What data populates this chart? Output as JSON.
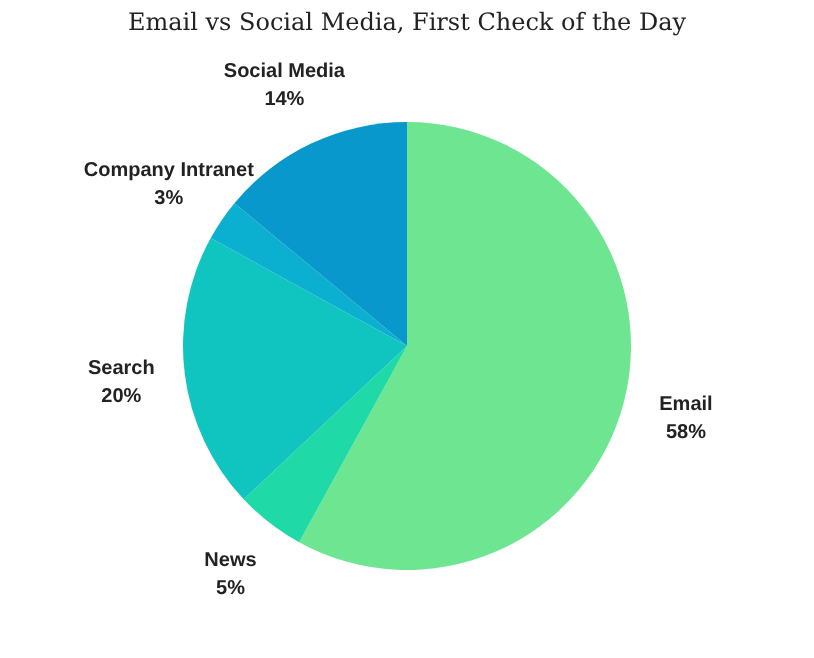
{
  "chart_data": {
    "type": "pie",
    "title": "Email vs Social Media, First Check of the Day",
    "categories": [
      "Email",
      "News",
      "Search",
      "Company Intranet",
      "Social Media"
    ],
    "values": [
      58,
      5,
      20,
      3,
      14
    ],
    "value_labels": [
      "58%",
      "5%",
      "20%",
      "3%",
      "14%"
    ],
    "colors": [
      "#6ee591",
      "#1fd9a6",
      "#10c5c0",
      "#0bb0d0",
      "#0898cc"
    ],
    "legend": false
  }
}
